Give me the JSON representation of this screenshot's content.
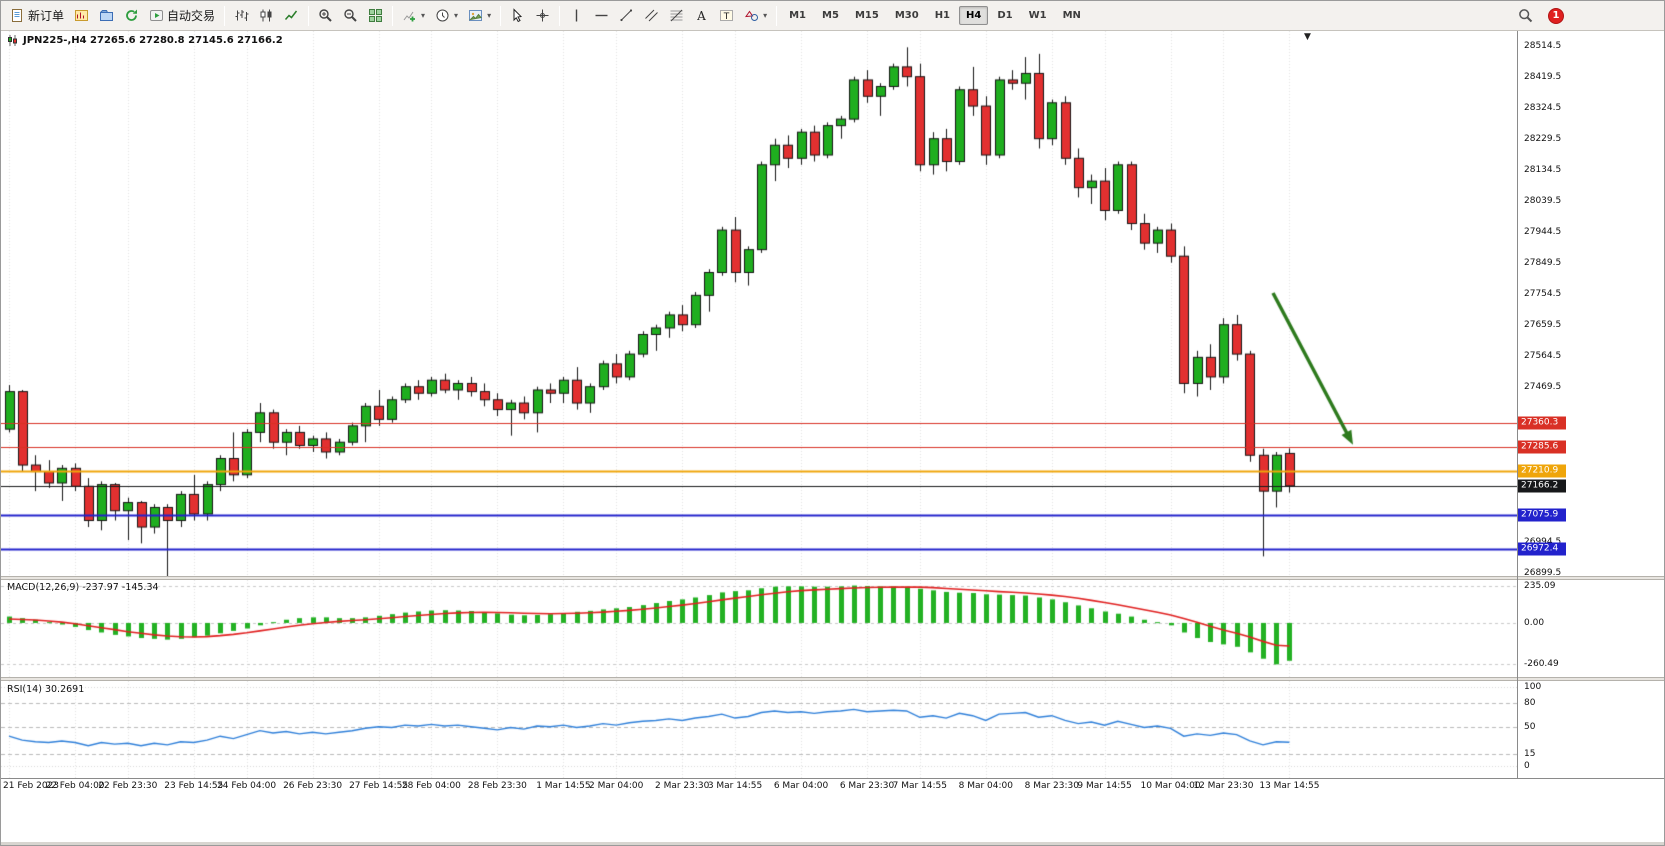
{
  "app": {
    "name": "MetaTrader Terminal"
  },
  "toolbar": {
    "new_order_label": "新订单",
    "algo_trading_label": "自动交易",
    "notification_count": "1",
    "timeframes": [
      "M1",
      "M5",
      "M15",
      "M30",
      "H1",
      "H4",
      "D1",
      "W1",
      "MN"
    ],
    "active_timeframe": "H4",
    "groups": [
      {
        "name": "trade",
        "items": [
          {
            "name": "new-order-button",
            "icon": "new-order",
            "label": "新订单"
          },
          {
            "name": "new-chart-button",
            "icon": "new-chart"
          },
          {
            "name": "profiles-button",
            "icon": "profiles"
          },
          {
            "name": "refresh-button",
            "icon": "refresh"
          },
          {
            "name": "algo-trading-button",
            "icon": "algo",
            "label": "自动交易"
          }
        ]
      },
      {
        "name": "chart-type",
        "items": [
          {
            "name": "bars-chart-button",
            "icon": "bars"
          },
          {
            "name": "candlestick-chart-button",
            "icon": "candles"
          },
          {
            "name": "line-chart-button",
            "icon": "linechart"
          }
        ]
      },
      {
        "name": "zoom",
        "items": [
          {
            "name": "zoom-in-button",
            "icon": "zoom-in"
          },
          {
            "name": "zoom-out-button",
            "icon": "zoom-out"
          },
          {
            "name": "tile-windows-button",
            "icon": "tile"
          }
        ]
      },
      {
        "name": "objects",
        "items": [
          {
            "name": "indicators-button",
            "icon": "indicators",
            "caret": true
          },
          {
            "name": "periods-button",
            "icon": "clock",
            "caret": true
          },
          {
            "name": "templates-button",
            "icon": "template",
            "caret": true
          }
        ]
      },
      {
        "name": "pointer",
        "items": [
          {
            "name": "cursor-button",
            "icon": "cursor"
          },
          {
            "name": "crosshair-button",
            "icon": "crosshair"
          }
        ]
      },
      {
        "name": "draw",
        "items": [
          {
            "name": "vertical-line-button",
            "icon": "vline"
          },
          {
            "name": "horizontal-line-button",
            "icon": "hline"
          },
          {
            "name": "trendline-button",
            "icon": "trendline"
          },
          {
            "name": "channel-button",
            "icon": "channel"
          },
          {
            "name": "fibonacci-button",
            "icon": "fibo"
          },
          {
            "name": "text-button",
            "icon": "textA"
          },
          {
            "name": "label-button",
            "icon": "textT"
          },
          {
            "name": "shapes-button",
            "icon": "shapes",
            "caret": true
          }
        ]
      }
    ]
  },
  "chart": {
    "title": "JPN225-,H4 27265.6 27280.8 27145.6 27166.2",
    "symbol": "JPN225-",
    "period": "H4",
    "y_axis_labels": [
      "28514.5",
      "28419.5",
      "28324.5",
      "28229.5",
      "28134.5",
      "28039.5",
      "27944.5",
      "27849.5",
      "27754.5",
      "27659.5",
      "27564.5",
      "27469.5",
      "26994.5",
      "26899.5"
    ],
    "price_lines": [
      {
        "label": "27360.3",
        "price": 27360.3,
        "color": "#d93025",
        "width": 1
      },
      {
        "label": "27285.6",
        "price": 27285.6,
        "color": "#d93025",
        "width": 1
      },
      {
        "label": "27210.9",
        "price": 27210.9,
        "color": "#efa50a",
        "width": 2
      },
      {
        "label": "27166.2",
        "price": 27166.2,
        "color": "#17181a",
        "width": 1,
        "role": "bid"
      },
      {
        "label": "27075.9",
        "price": 27075.9,
        "color": "#2222cc",
        "width": 2
      },
      {
        "label": "26972.4",
        "price": 26972.4,
        "color": "#2222cc",
        "width": 2
      }
    ],
    "annotation_arrow": {
      "color": "#2d7a1d",
      "from": {
        "x": 1272,
        "price": 27757
      },
      "to": {
        "x": 1352,
        "price": 27292
      }
    }
  },
  "indicators": {
    "macd": {
      "label": "MACD(12,26,9)",
      "values": "-237.97 -145.34",
      "scale_labels": [
        "235.09",
        "0.00",
        "-260.49"
      ],
      "levels": [
        235.09,
        0,
        -260.49
      ],
      "histogram_color": "#23b123",
      "signal_color": "#e02020"
    },
    "rsi": {
      "label": "RSI(14)",
      "value": "30.2691",
      "scale_labels": [
        "100",
        "80",
        "50",
        "15",
        "0"
      ],
      "levels": [
        80,
        50,
        15
      ],
      "line_color": "#2e7fd9"
    }
  },
  "chart_data": {
    "type": "candlestick",
    "symbol": "JPN225-",
    "timeframe": "H4",
    "title": "JPN225-,H4",
    "ohlc_current": {
      "open": 27265.6,
      "high": 27280.8,
      "low": 27145.6,
      "close": 27166.2
    },
    "y_range": [
      26890,
      28560
    ],
    "up_color": "#1fae1f",
    "down_color": "#e23030",
    "x_labels": [
      "21 Feb 2023",
      "22 Feb 04:00",
      "22 Feb 23:30",
      "23 Feb 14:55",
      "24 Feb 04:00",
      "26 Feb 23:30",
      "27 Feb 14:55",
      "28 Feb 04:00",
      "28 Feb 23:30",
      "1 Mar 14:55",
      "2 Mar 04:00",
      "2 Mar 23:30",
      "3 Mar 14:55",
      "6 Mar 04:00",
      "6 Mar 23:30",
      "7 Mar 14:55",
      "8 Mar 04:00",
      "8 Mar 23:30",
      "9 Mar 14:55",
      "10 Mar 04:00",
      "12 Mar 23:30",
      "13 Mar 14:55"
    ],
    "candles": [
      [
        27340,
        27475,
        27330,
        27455
      ],
      [
        27455,
        27460,
        27210,
        27230
      ],
      [
        27230,
        27260,
        27150,
        27210
      ],
      [
        27210,
        27245,
        27160,
        27175
      ],
      [
        27175,
        27230,
        27120,
        27220
      ],
      [
        27220,
        27235,
        27150,
        27165
      ],
      [
        27165,
        27190,
        27040,
        27060
      ],
      [
        27060,
        27180,
        27030,
        27170
      ],
      [
        27170,
        27175,
        27060,
        27090
      ],
      [
        27090,
        27130,
        27000,
        27115
      ],
      [
        27115,
        27120,
        26990,
        27040
      ],
      [
        27040,
        27110,
        27020,
        27100
      ],
      [
        27100,
        27110,
        26870,
        27060
      ],
      [
        27060,
        27150,
        27040,
        27140
      ],
      [
        27140,
        27200,
        27060,
        27080
      ],
      [
        27080,
        27180,
        27060,
        27170
      ],
      [
        27170,
        27260,
        27150,
        27250
      ],
      [
        27250,
        27330,
        27180,
        27200
      ],
      [
        27200,
        27340,
        27190,
        27330
      ],
      [
        27330,
        27420,
        27300,
        27390
      ],
      [
        27390,
        27400,
        27280,
        27300
      ],
      [
        27300,
        27340,
        27260,
        27330
      ],
      [
        27330,
        27350,
        27280,
        27290
      ],
      [
        27290,
        27320,
        27270,
        27310
      ],
      [
        27310,
        27330,
        27250,
        27270
      ],
      [
        27270,
        27310,
        27260,
        27300
      ],
      [
        27300,
        27360,
        27290,
        27350
      ],
      [
        27350,
        27420,
        27300,
        27410
      ],
      [
        27410,
        27460,
        27350,
        27370
      ],
      [
        27370,
        27440,
        27360,
        27430
      ],
      [
        27430,
        27480,
        27420,
        27470
      ],
      [
        27470,
        27490,
        27430,
        27450
      ],
      [
        27450,
        27500,
        27440,
        27490
      ],
      [
        27490,
        27510,
        27450,
        27460
      ],
      [
        27460,
        27490,
        27430,
        27480
      ],
      [
        27480,
        27500,
        27440,
        27455
      ],
      [
        27455,
        27480,
        27410,
        27430
      ],
      [
        27430,
        27450,
        27380,
        27400
      ],
      [
        27400,
        27430,
        27320,
        27420
      ],
      [
        27420,
        27440,
        27370,
        27390
      ],
      [
        27390,
        27470,
        27330,
        27460
      ],
      [
        27460,
        27480,
        27420,
        27450
      ],
      [
        27450,
        27500,
        27420,
        27490
      ],
      [
        27490,
        27530,
        27400,
        27420
      ],
      [
        27420,
        27480,
        27390,
        27470
      ],
      [
        27470,
        27550,
        27460,
        27540
      ],
      [
        27540,
        27570,
        27480,
        27500
      ],
      [
        27500,
        27580,
        27490,
        27570
      ],
      [
        27570,
        27640,
        27560,
        27630
      ],
      [
        27630,
        27660,
        27580,
        27650
      ],
      [
        27650,
        27700,
        27620,
        27690
      ],
      [
        27690,
        27720,
        27640,
        27660
      ],
      [
        27660,
        27760,
        27650,
        27750
      ],
      [
        27750,
        27830,
        27700,
        27820
      ],
      [
        27820,
        27960,
        27810,
        27950
      ],
      [
        27950,
        27990,
        27790,
        27820
      ],
      [
        27820,
        27900,
        27780,
        27890
      ],
      [
        27890,
        28160,
        27880,
        28150
      ],
      [
        28150,
        28230,
        28100,
        28210
      ],
      [
        28210,
        28240,
        28140,
        28170
      ],
      [
        28170,
        28260,
        28150,
        28250
      ],
      [
        28250,
        28270,
        28160,
        28180
      ],
      [
        28180,
        28280,
        28170,
        28270
      ],
      [
        28270,
        28300,
        28230,
        28290
      ],
      [
        28290,
        28420,
        28280,
        28410
      ],
      [
        28410,
        28440,
        28340,
        28360
      ],
      [
        28360,
        28400,
        28300,
        28390
      ],
      [
        28390,
        28460,
        28380,
        28450
      ],
      [
        28450,
        28510,
        28390,
        28420
      ],
      [
        28420,
        28460,
        28130,
        28150
      ],
      [
        28150,
        28250,
        28120,
        28230
      ],
      [
        28230,
        28260,
        28130,
        28160
      ],
      [
        28160,
        28390,
        28150,
        28380
      ],
      [
        28380,
        28450,
        28300,
        28330
      ],
      [
        28330,
        28360,
        28150,
        28180
      ],
      [
        28180,
        28420,
        28170,
        28410
      ],
      [
        28410,
        28440,
        28380,
        28400
      ],
      [
        28400,
        28480,
        28350,
        28430
      ],
      [
        28430,
        28490,
        28200,
        28230
      ],
      [
        28230,
        28350,
        28210,
        28340
      ],
      [
        28340,
        28360,
        28150,
        28170
      ],
      [
        28170,
        28200,
        28050,
        28080
      ],
      [
        28080,
        28120,
        28030,
        28100
      ],
      [
        28100,
        28140,
        27980,
        28010
      ],
      [
        28010,
        28160,
        28000,
        28150
      ],
      [
        28150,
        28160,
        27950,
        27970
      ],
      [
        27970,
        28000,
        27890,
        27910
      ],
      [
        27910,
        27960,
        27880,
        27950
      ],
      [
        27950,
        27970,
        27850,
        27870
      ],
      [
        27870,
        27900,
        27450,
        27480
      ],
      [
        27480,
        27580,
        27440,
        27560
      ],
      [
        27560,
        27600,
        27460,
        27500
      ],
      [
        27500,
        27680,
        27480,
        27660
      ],
      [
        27660,
        27690,
        27550,
        27570
      ],
      [
        27570,
        27580,
        27240,
        27260
      ],
      [
        27260,
        27280,
        26950,
        27150
      ],
      [
        27150,
        27270,
        27100,
        27260
      ],
      [
        27265.6,
        27280.8,
        27145.6,
        27166.2
      ]
    ],
    "macd": {
      "histogram": [
        40,
        30,
        20,
        5,
        -10,
        -25,
        -45,
        -60,
        -75,
        -85,
        -95,
        -100,
        -105,
        -100,
        -90,
        -80,
        -65,
        -50,
        -35,
        -15,
        5,
        20,
        30,
        35,
        35,
        30,
        30,
        35,
        45,
        55,
        65,
        72,
        78,
        80,
        78,
        75,
        68,
        60,
        52,
        48,
        50,
        55,
        62,
        70,
        76,
        85,
        92,
        100,
        112,
        125,
        138,
        148,
        160,
        175,
        192,
        200,
        205,
        218,
        228,
        230,
        230,
        228,
        228,
        230,
        235.1,
        232,
        230,
        230,
        228,
        215,
        205,
        195,
        190,
        188,
        180,
        178,
        175,
        172,
        160,
        148,
        130,
        110,
        92,
        72,
        58,
        40,
        20,
        5,
        -15,
        -60,
        -95,
        -120,
        -135,
        -150,
        -185,
        -225,
        -260.5,
        -237.97
      ],
      "signal": [
        25,
        22,
        18,
        12,
        5,
        -5,
        -18,
        -30,
        -42,
        -55,
        -65,
        -75,
        -82,
        -87,
        -88,
        -86,
        -80,
        -72,
        -62,
        -50,
        -38,
        -26,
        -15,
        -5,
        3,
        10,
        15,
        20,
        26,
        33,
        40,
        47,
        53,
        59,
        63,
        66,
        67,
        66,
        64,
        61,
        59,
        58,
        59,
        61,
        64,
        68,
        73,
        79,
        86,
        94,
        103,
        112,
        122,
        133,
        145,
        156,
        166,
        177,
        187,
        196,
        203,
        208,
        212,
        216,
        220,
        223,
        224,
        225,
        226,
        225,
        222,
        217,
        212,
        207,
        202,
        197,
        193,
        188,
        182,
        175,
        166,
        155,
        142,
        128,
        114,
        99,
        83,
        67,
        50,
        28,
        4,
        -21,
        -44,
        -65,
        -89,
        -116,
        -140,
        -145.34
      ]
    },
    "rsi": [
      38,
      33,
      31,
      30,
      32,
      30,
      26,
      30,
      28,
      29,
      26,
      29,
      27,
      31,
      30,
      33,
      38,
      35,
      40,
      45,
      42,
      44,
      41,
      43,
      41,
      43,
      45,
      48,
      50,
      49,
      52,
      51,
      53,
      51,
      52,
      50,
      48,
      46,
      49,
      47,
      51,
      50,
      52,
      49,
      51,
      54,
      52,
      55,
      57,
      58,
      60,
      58,
      61,
      63,
      66,
      61,
      63,
      68,
      70,
      68,
      69,
      67,
      69,
      70,
      72,
      69,
      70,
      71,
      70,
      62,
      64,
      61,
      67,
      64,
      58,
      66,
      67,
      68,
      62,
      64,
      58,
      54,
      56,
      52,
      57,
      53,
      49,
      51,
      48,
      38,
      41,
      39,
      42,
      40,
      32,
      27,
      31,
      30.27
    ]
  }
}
